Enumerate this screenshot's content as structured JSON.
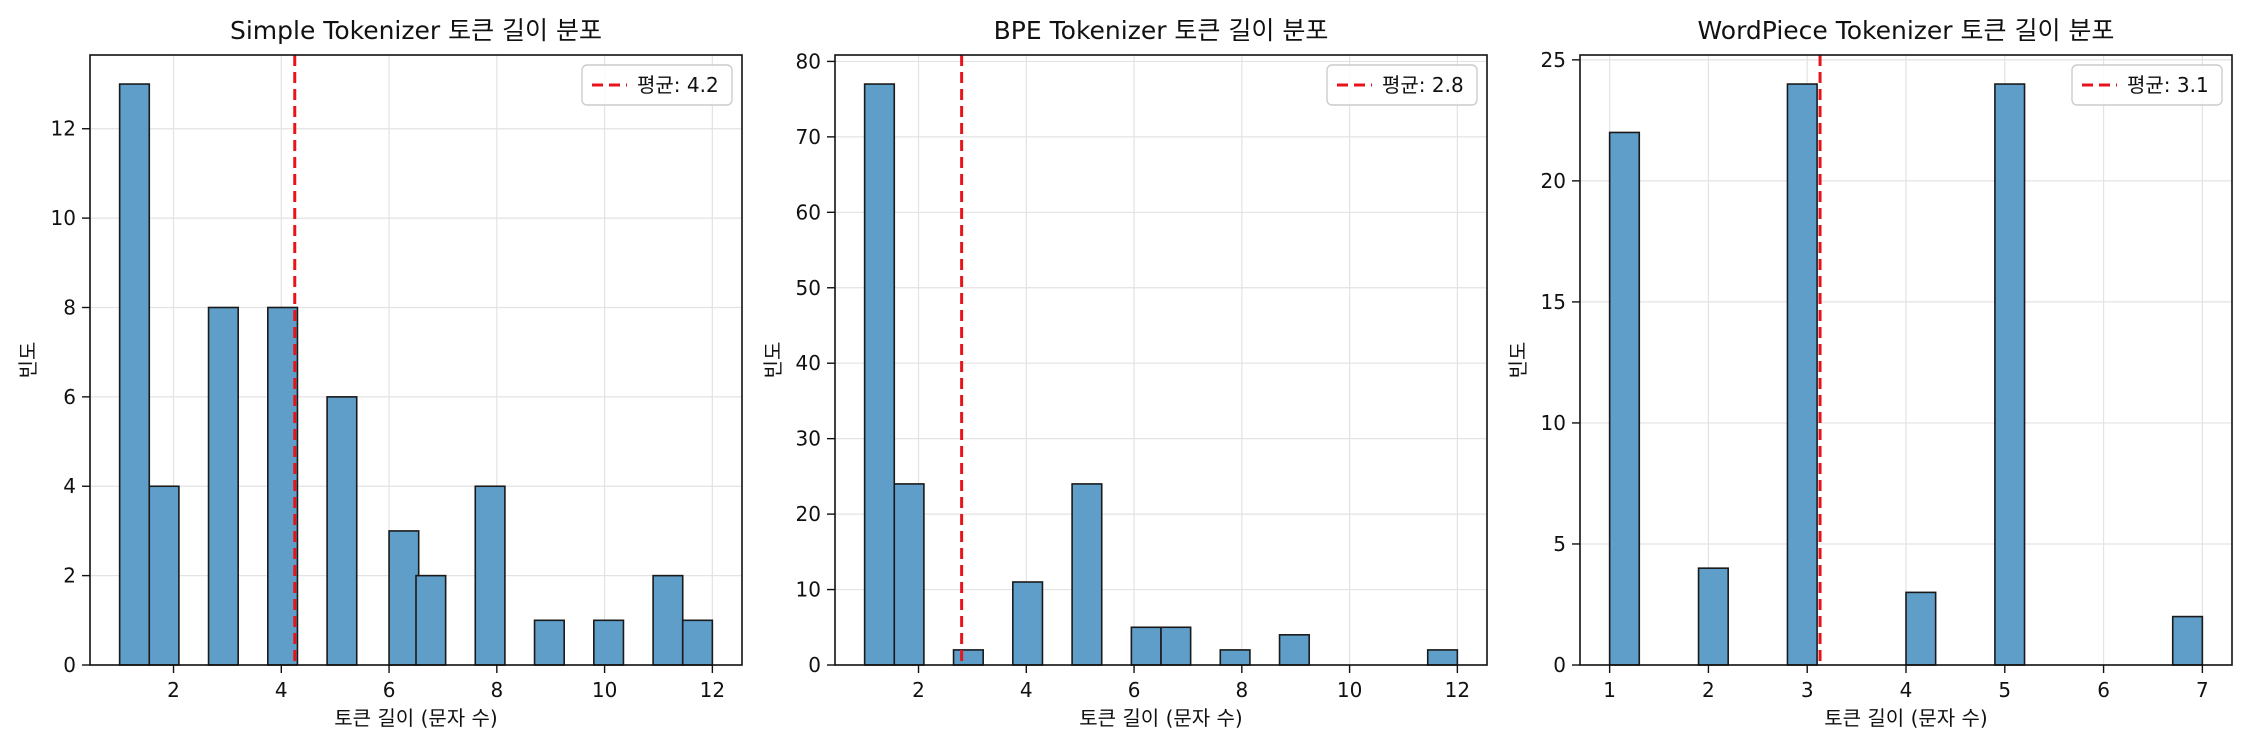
{
  "chart_data": [
    {
      "type": "bar",
      "title": "Simple Tokenizer 토큰 길이 분포",
      "xlabel": "토큰 길이 (문자 수)",
      "ylabel": "빈도",
      "xlim": [
        0.45,
        12.55
      ],
      "ylim": [
        0,
        13.65
      ],
      "xticks": [
        2,
        4,
        6,
        8,
        10,
        12
      ],
      "yticks": [
        0,
        2,
        4,
        6,
        8,
        10,
        12
      ],
      "bin_start": 1,
      "bin_width": 0.55,
      "bins": [
        {
          "x": 1,
          "count": 13
        },
        {
          "x": 1.55,
          "count": 4
        },
        {
          "x": 2.65,
          "count": 8
        },
        {
          "x": 3.75,
          "count": 8
        },
        {
          "x": 4.85,
          "count": 6
        },
        {
          "x": 6.0,
          "count": 3
        },
        {
          "x": 6.5,
          "count": 2
        },
        {
          "x": 7.6,
          "count": 4
        },
        {
          "x": 8.7,
          "count": 1
        },
        {
          "x": 9.8,
          "count": 1
        },
        {
          "x": 10.9,
          "count": 2
        },
        {
          "x": 11.45,
          "count": 1
        }
      ],
      "mean": 4.25,
      "legend_label": "평균: 4.2",
      "legend": "top-right",
      "grid": true
    },
    {
      "type": "bar",
      "title": "BPE Tokenizer 토큰 길이 분포",
      "xlabel": "토큰 길이 (문자 수)",
      "ylabel": "빈도",
      "xlim": [
        0.45,
        12.55
      ],
      "ylim": [
        0,
        80.85
      ],
      "xticks": [
        2,
        4,
        6,
        8,
        10,
        12
      ],
      "yticks": [
        0,
        10,
        20,
        30,
        40,
        50,
        60,
        70,
        80
      ],
      "bin_width": 0.55,
      "bins": [
        {
          "x": 1,
          "count": 77
        },
        {
          "x": 1.55,
          "count": 24
        },
        {
          "x": 2.65,
          "count": 2
        },
        {
          "x": 3.75,
          "count": 11
        },
        {
          "x": 4.85,
          "count": 24
        },
        {
          "x": 5.95,
          "count": 5
        },
        {
          "x": 6.5,
          "count": 5
        },
        {
          "x": 7.6,
          "count": 2
        },
        {
          "x": 8.7,
          "count": 4
        },
        {
          "x": 11.45,
          "count": 2
        }
      ],
      "mean": 2.8,
      "legend_label": "평균: 2.8",
      "legend": "top-right",
      "grid": true
    },
    {
      "type": "bar",
      "title": "WordPiece Tokenizer 토큰 길이 분포",
      "xlabel": "토큰 길이 (문자 수)",
      "ylabel": "빈도",
      "xlim": [
        0.7,
        7.3
      ],
      "ylim": [
        0,
        25.2
      ],
      "xticks": [
        1,
        2,
        3,
        4,
        5,
        6,
        7
      ],
      "yticks": [
        0,
        5,
        10,
        15,
        20,
        25
      ],
      "bin_width": 0.3,
      "bins": [
        {
          "x": 1,
          "count": 22
        },
        {
          "x": 1.9,
          "count": 4
        },
        {
          "x": 2.8,
          "count": 24
        },
        {
          "x": 4.0,
          "count": 3
        },
        {
          "x": 4.9,
          "count": 24
        },
        {
          "x": 6.7,
          "count": 2
        }
      ],
      "mean": 3.13,
      "legend_label": "평균: 3.1",
      "legend": "top-right",
      "grid": true
    }
  ]
}
